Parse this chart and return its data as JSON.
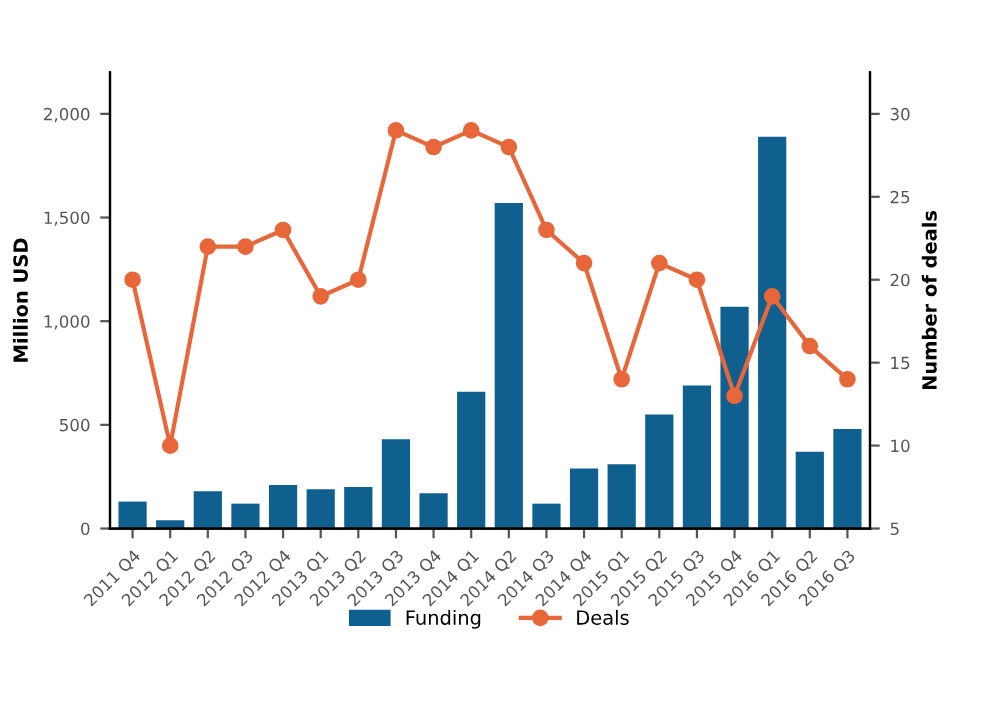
{
  "chart_data": {
    "type": "bar",
    "categories": [
      "2011 Q4",
      "2012 Q1",
      "2012 Q2",
      "2012 Q3",
      "2012 Q4",
      "2013 Q1",
      "2013 Q2",
      "2013 Q3",
      "2013 Q4",
      "2014 Q1",
      "2014 Q2",
      "2014 Q3",
      "2014 Q4",
      "2015 Q1",
      "2015 Q2",
      "2015 Q3",
      "2015 Q4",
      "2016 Q1",
      "2016 Q2",
      "2016 Q3"
    ],
    "series": [
      {
        "name": "Funding",
        "color": "#0f5f8f",
        "values": [
          130,
          40,
          180,
          120,
          210,
          190,
          200,
          430,
          170,
          660,
          1570,
          120,
          290,
          310,
          550,
          690,
          1070,
          1890,
          370,
          480
        ]
      },
      {
        "name": "Deals",
        "type": "line",
        "axis": "y2",
        "color": "#e8673a",
        "marker": "circle",
        "values": [
          20,
          10,
          22,
          22,
          23,
          19,
          20,
          29,
          28,
          29,
          28,
          23,
          21,
          14,
          21,
          20,
          13,
          19,
          16,
          14
        ]
      }
    ],
    "ylabel": "Million USD",
    "y2label": "Number of deals",
    "ylim": [
      0,
      2200
    ],
    "yticks": [
      {
        "value": 0,
        "label": "0"
      },
      {
        "value": 500,
        "label": "500"
      },
      {
        "value": 1000,
        "label": "1,000"
      },
      {
        "value": 1500,
        "label": "1,500"
      },
      {
        "value": 2000,
        "label": "2,000"
      }
    ],
    "y2lim": [
      5,
      32.5
    ],
    "y2ticks": [
      5,
      10,
      15,
      20,
      25,
      30
    ],
    "grid": false,
    "legend": "bottom"
  }
}
